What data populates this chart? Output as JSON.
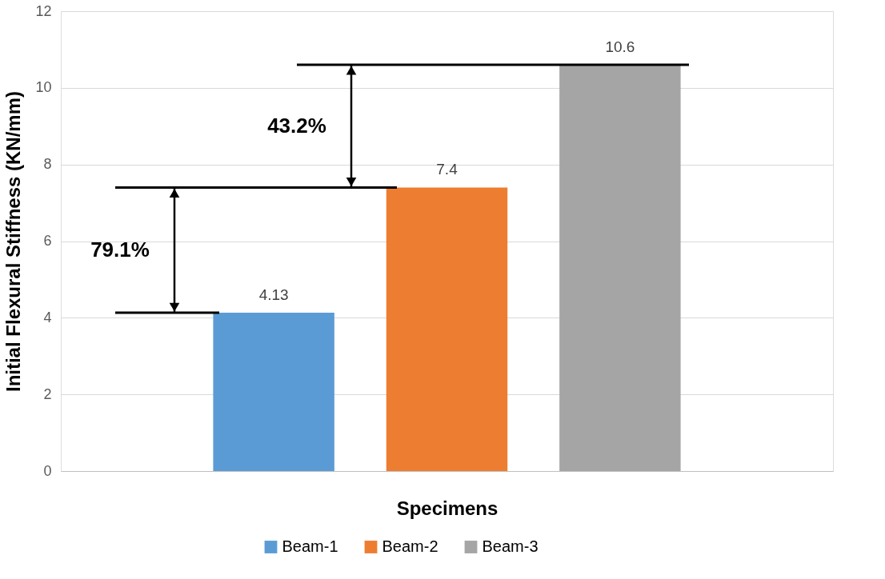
{
  "chart_data": {
    "type": "bar",
    "xlabel": "Specimens",
    "ylabel": "Initial Flexural Stiffness (KN/mm)",
    "categories": [
      null
    ],
    "series": [
      {
        "name": "Beam-1",
        "color": "#5b9bd5",
        "values": [
          4.13
        ]
      },
      {
        "name": "Beam-2",
        "color": "#ed7d31",
        "values": [
          7.4
        ]
      },
      {
        "name": "Beam-3",
        "color": "#a5a5a5",
        "values": [
          10.6
        ]
      }
    ],
    "ref_lines": [
      {
        "axis": "y",
        "value": 4.13
      },
      {
        "axis": "y",
        "value": 7.4
      },
      {
        "axis": "y",
        "value": 10.6
      }
    ],
    "ylim": [
      0,
      12
    ],
    "yticks": [
      0,
      2,
      4,
      6,
      8,
      10,
      12
    ],
    "grid": "y",
    "legend": "bottom",
    "data_labels": true,
    "tick_labels": "y",
    "annotations": [
      "79.1%",
      "43.2%"
    ]
  }
}
